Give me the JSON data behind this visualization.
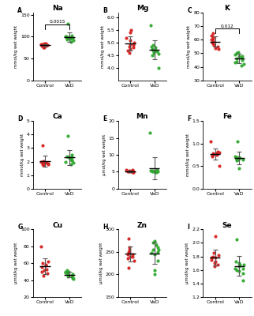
{
  "panels": [
    {
      "label": "A",
      "title": "Na",
      "ylabel": "mmol/kg wet weight",
      "ylim": [
        0,
        155
      ],
      "yticks": [
        0,
        50,
        100,
        150
      ],
      "control": [
        78,
        80,
        82,
        76,
        79,
        81,
        83,
        77,
        75,
        84,
        85,
        80
      ],
      "vad": [
        95,
        98,
        100,
        97,
        99,
        96,
        101,
        94,
        102,
        92,
        130,
        88
      ],
      "sig_text": "0.0015",
      "sig": true
    },
    {
      "label": "B",
      "title": "Mg",
      "ylabel": "mmol/kg wet weight",
      "ylim": [
        3.5,
        6.2
      ],
      "yticks": [
        4.0,
        4.5,
        5.0,
        5.5,
        6.0
      ],
      "control": [
        4.8,
        5.0,
        4.9,
        5.1,
        4.7,
        5.2,
        4.6,
        4.85,
        4.95,
        5.4,
        5.5,
        4.75
      ],
      "vad": [
        4.65,
        4.7,
        4.8,
        4.6,
        4.75,
        4.55,
        4.9,
        4.5,
        5.7,
        4.0,
        4.85,
        4.7
      ],
      "sig_text": "",
      "sig": false
    },
    {
      "label": "C",
      "title": "K",
      "ylabel": "mmol/kg wet weight",
      "ylim": [
        30,
        80
      ],
      "yticks": [
        30,
        40,
        50,
        60,
        70,
        80
      ],
      "control": [
        55,
        58,
        60,
        56,
        62,
        54,
        57,
        59,
        63,
        65,
        53,
        61
      ],
      "vad": [
        47,
        48,
        45,
        50,
        46,
        43,
        49,
        44,
        42,
        51,
        41,
        48
      ],
      "sig_text": "0.012",
      "sig": true
    },
    {
      "label": "D",
      "title": "Ca",
      "ylabel": "mmol/kg wet weight",
      "ylim": [
        0,
        5
      ],
      "yticks": [
        0,
        1,
        2,
        3,
        4,
        5
      ],
      "control": [
        1.8,
        1.9,
        2.0,
        1.85,
        1.95,
        2.05,
        1.75,
        1.9,
        3.2,
        1.8,
        1.95
      ],
      "vad": [
        2.2,
        2.3,
        2.1,
        2.4,
        2.0,
        2.5,
        1.9,
        2.2,
        3.9,
        2.1,
        1.8,
        2.3
      ],
      "sig_text": "",
      "sig": false
    },
    {
      "label": "E",
      "title": "Mn",
      "ylabel": "μmol/kg wet weight",
      "ylim": [
        0,
        20
      ],
      "yticks": [
        0,
        5,
        10,
        15,
        20
      ],
      "control": [
        5.0,
        5.2,
        5.5,
        4.8,
        5.3,
        5.1,
        5.4,
        4.9,
        5.6,
        5.2,
        5.0
      ],
      "vad": [
        5.0,
        5.3,
        5.1,
        4.9,
        5.2,
        5.4,
        4.8,
        5.5,
        5.0,
        16.5,
        5.1,
        5.3
      ],
      "sig_text": "",
      "sig": false
    },
    {
      "label": "F",
      "title": "Fe",
      "ylabel": "mmol/kg wet weight",
      "ylim": [
        0.0,
        1.5
      ],
      "yticks": [
        0.0,
        0.5,
        1.0,
        1.5
      ],
      "control": [
        0.75,
        0.78,
        0.8,
        0.72,
        0.82,
        0.76,
        0.74,
        0.79,
        0.77,
        1.05,
        0.5
      ],
      "vad": [
        0.65,
        0.68,
        0.7,
        0.62,
        0.72,
        0.66,
        0.64,
        0.69,
        1.05,
        0.45,
        0.67
      ],
      "sig_text": "",
      "sig": false
    },
    {
      "label": "G",
      "title": "Cu",
      "ylabel": "μmol/kg wet weight",
      "ylim": [
        20,
        100
      ],
      "yticks": [
        20,
        40,
        60,
        80,
        100
      ],
      "control": [
        55,
        58,
        50,
        60,
        45,
        62,
        53,
        57,
        80,
        48,
        52
      ],
      "vad": [
        45,
        48,
        50,
        42,
        52,
        46,
        44,
        49,
        43,
        47,
        41,
        50
      ],
      "sig_text": "",
      "sig": false
    },
    {
      "label": "H",
      "title": "Zn",
      "ylabel": "μmol/kg wet weight",
      "ylim": [
        150,
        300
      ],
      "yticks": [
        150,
        200,
        250,
        300
      ],
      "control": [
        240,
        245,
        235,
        255,
        260,
        230,
        250,
        245,
        240,
        280,
        215,
        250
      ],
      "vad": [
        248,
        255,
        260,
        245,
        270,
        250,
        265,
        255,
        210,
        200,
        230,
        275
      ],
      "sig_text": "",
      "sig": false
    },
    {
      "label": "I",
      "title": "Se",
      "ylabel": "μmol/kg wet weight",
      "ylim": [
        1.2,
        2.2
      ],
      "yticks": [
        1.2,
        1.4,
        1.6,
        1.8,
        2.0,
        2.2
      ],
      "control": [
        1.75,
        1.8,
        1.7,
        1.85,
        1.72,
        1.78,
        1.68,
        1.82,
        2.1,
        1.65,
        1.78
      ],
      "vad": [
        1.62,
        1.65,
        1.68,
        1.6,
        1.7,
        1.58,
        1.72,
        1.55,
        2.05,
        1.45,
        1.62,
        1.68
      ],
      "sig_text": "",
      "sig": false
    }
  ],
  "control_color": "#D42020",
  "vad_color": "#2EA82E",
  "marker_size": 9,
  "figsize": [
    3.22,
    4.0
  ],
  "dpi": 100
}
